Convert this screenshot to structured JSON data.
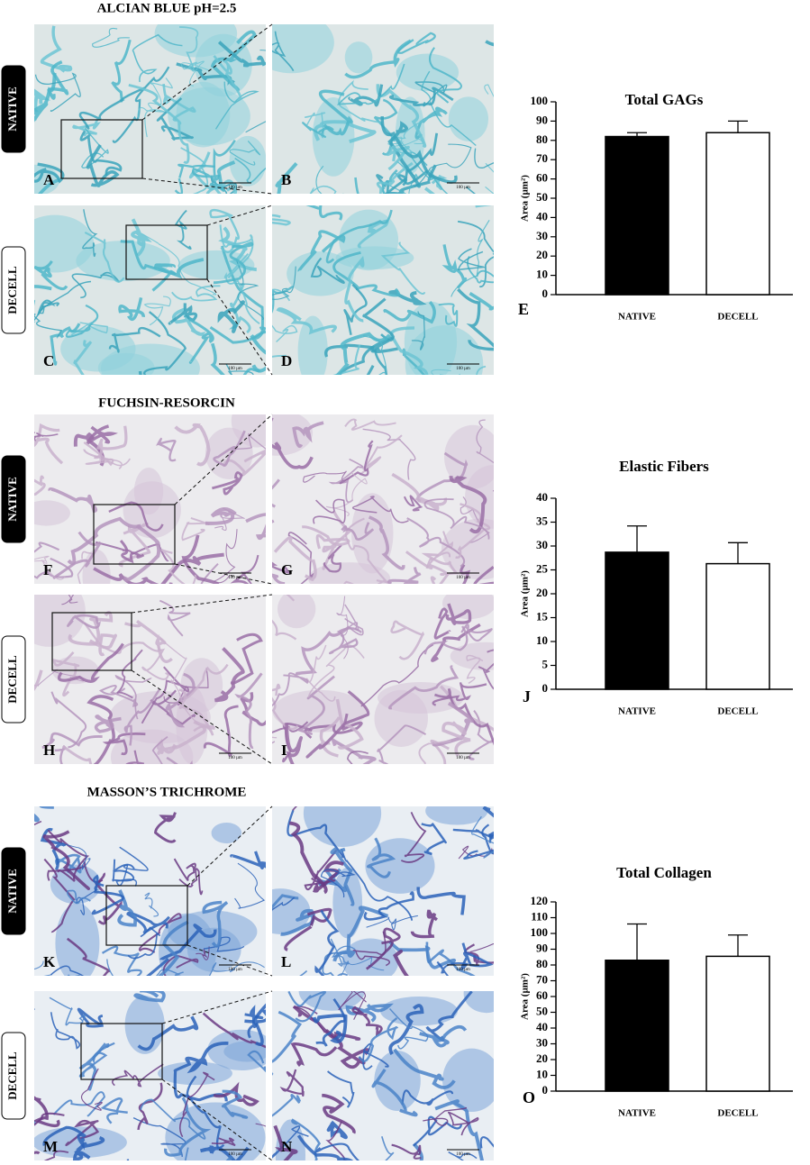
{
  "sections": [
    {
      "title": "ALCIAN BLUE pH=2.5",
      "rows": [
        {
          "label": "NATIVE",
          "panels": [
            {
              "letter": "A",
              "scale": "100 µm"
            },
            {
              "letter": "B",
              "scale": "100 µm"
            }
          ]
        },
        {
          "label": "DECELL",
          "panels": [
            {
              "letter": "C",
              "scale": "100 µm"
            },
            {
              "letter": "D",
              "scale": "100 µm"
            }
          ]
        }
      ]
    },
    {
      "title": "FUCHSIN-RESORCIN",
      "rows": [
        {
          "label": "NATIVE",
          "panels": [
            {
              "letter": "F",
              "scale": "100 µm"
            },
            {
              "letter": "G",
              "scale": "100 µm"
            }
          ]
        },
        {
          "label": "DECELL",
          "panels": [
            {
              "letter": "H",
              "scale": "100 µm"
            },
            {
              "letter": "I",
              "scale": "100 µm"
            }
          ]
        }
      ]
    },
    {
      "title": "MASSON’S TRICHROME",
      "rows": [
        {
          "label": "NATIVE",
          "panels": [
            {
              "letter": "K",
              "scale": "100 µm"
            },
            {
              "letter": "L",
              "scale": "100 µm"
            }
          ]
        },
        {
          "label": "DECELL",
          "panels": [
            {
              "letter": "M",
              "scale": "100 µm"
            },
            {
              "letter": "N",
              "scale": "100 µm"
            }
          ]
        }
      ]
    }
  ],
  "chart_data": [
    {
      "type": "bar",
      "panel": "E",
      "title": "Total GAGs",
      "ylabel": "Area (µm²)",
      "categories": [
        "NATIVE",
        "DECELL"
      ],
      "values": [
        82,
        84
      ],
      "errors": [
        2,
        6
      ],
      "colors": [
        "#000000",
        "#ffffff"
      ],
      "ylim": [
        0,
        100
      ],
      "yticks": [
        0,
        10,
        20,
        30,
        40,
        50,
        60,
        70,
        80,
        90,
        100
      ]
    },
    {
      "type": "bar",
      "panel": "J",
      "title": "Elastic Fibers",
      "ylabel": "Area (µm²)",
      "categories": [
        "NATIVE",
        "DECELL"
      ],
      "values": [
        28.7,
        26.3
      ],
      "errors": [
        5.5,
        4.4
      ],
      "colors": [
        "#000000",
        "#ffffff"
      ],
      "ylim": [
        0,
        40
      ],
      "yticks": [
        0,
        5,
        10,
        15,
        20,
        25,
        30,
        35,
        40
      ]
    },
    {
      "type": "bar",
      "panel": "O",
      "title": "Total Collagen",
      "ylabel": "Area (µm²)",
      "categories": [
        "NATIVE",
        "DECELL"
      ],
      "values": [
        83,
        85.5
      ],
      "errors": [
        23,
        13.5
      ],
      "colors": [
        "#000000",
        "#ffffff"
      ],
      "ylim": [
        0,
        120
      ],
      "yticks": [
        0,
        10,
        20,
        30,
        40,
        50,
        60,
        70,
        80,
        90,
        100,
        110,
        120
      ]
    }
  ]
}
